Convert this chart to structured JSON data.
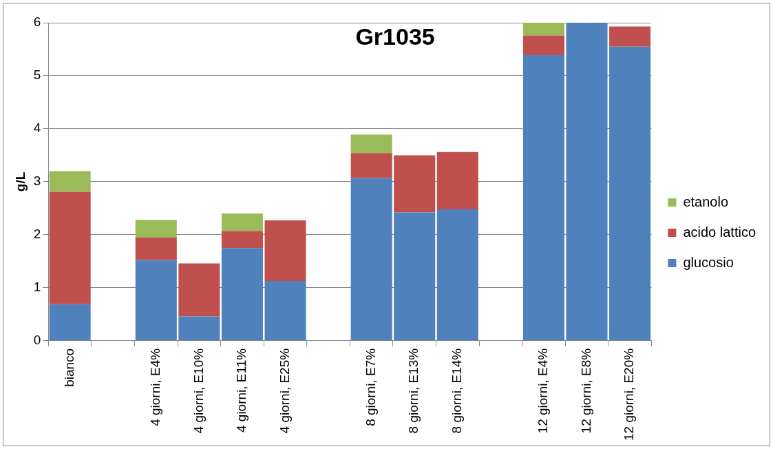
{
  "chart_data": {
    "type": "bar",
    "title": "Gr1035",
    "ylabel": "g/L",
    "stacked": true,
    "legend": "right",
    "grid": "y",
    "categories": [
      "bianco",
      null,
      "4 giorni, E4%",
      "4 giorni, E10%",
      "4 giorni, E11%",
      "4 giorni, E25%",
      null,
      "8 giorni, E7%",
      "8 giorni, E13%",
      "8 giorni, E14%",
      null,
      "12 giorni, E4%",
      "12 giorni, E8%",
      "12 giorni, E20%"
    ],
    "ylim": [
      0,
      6
    ],
    "yticks": [
      0,
      1,
      2,
      3,
      4,
      5,
      6
    ],
    "series": [
      {
        "name": "glucosio",
        "color": "#4f81bd",
        "values": [
          0.69,
          null,
          1.52,
          0.46,
          1.75,
          1.13,
          null,
          3.07,
          2.42,
          2.48,
          null,
          5.39,
          6.0,
          5.55
        ]
      },
      {
        "name": "acido lattico",
        "color": "#c0504d",
        "values": [
          2.12,
          null,
          0.43,
          1.0,
          0.32,
          1.14,
          null,
          0.47,
          1.08,
          1.08,
          null,
          0.37,
          null,
          0.38
        ]
      },
      {
        "name": "etanolo",
        "color": "#9bbb59",
        "values": [
          0.39,
          null,
          0.33,
          null,
          0.33,
          null,
          null,
          0.35,
          null,
          null,
          null,
          0.24,
          null,
          null
        ]
      }
    ]
  }
}
